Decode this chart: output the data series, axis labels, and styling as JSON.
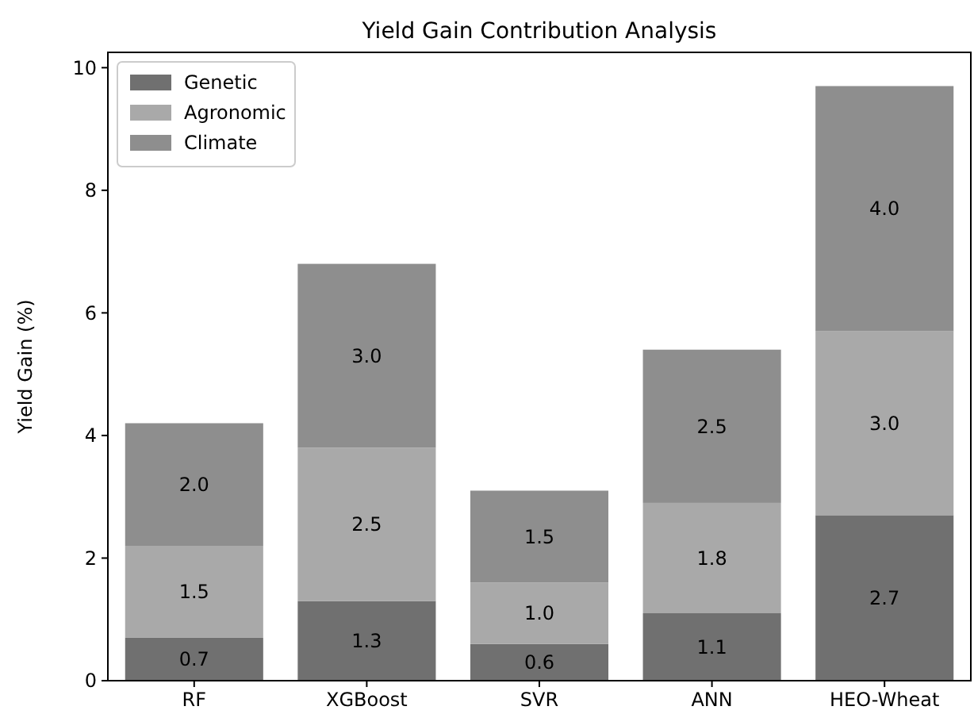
{
  "chart_data": {
    "type": "bar",
    "title": "Yield Gain Contribution Analysis",
    "ylabel": "Yield Gain (%)",
    "categories": [
      "RF",
      "XGBoost",
      "SVR",
      "ANN",
      "HEO-Wheat"
    ],
    "series": [
      {
        "name": "Genetic",
        "color": "#707070",
        "values": [
          0.7,
          1.3,
          0.6,
          1.1,
          2.7
        ],
        "value_labels": [
          "0.7",
          "1.3",
          "0.6",
          "1.1",
          "2.7"
        ]
      },
      {
        "name": "Agronomic",
        "color": "#a9a9a9",
        "values": [
          1.5,
          2.5,
          1.0,
          1.8,
          3.0
        ],
        "value_labels": [
          "1.5",
          "2.5",
          "1.0",
          "1.8",
          "3.0"
        ]
      },
      {
        "name": "Climate",
        "color": "#8e8e8e",
        "values": [
          2.0,
          3.0,
          1.5,
          2.5,
          4.0
        ],
        "value_labels": [
          "2.0",
          "3.0",
          "1.5",
          "2.5",
          "4.0"
        ]
      }
    ],
    "stacked": true,
    "legend": "top left",
    "ylim": [
      0,
      10.25
    ],
    "yticks": [
      0,
      2,
      4,
      6,
      8,
      10
    ]
  }
}
